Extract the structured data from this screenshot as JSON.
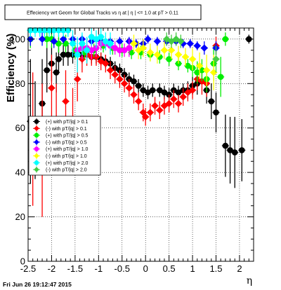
{
  "title": "Effeciency wrt Geom for Global Tracks vs  η at | η | <= 1.0 at pT > 0.11",
  "footer": "Fri Jun 26 19:12:47 2015",
  "chart_data": {
    "type": "scatter",
    "title": "Effeciency wrt Geom for Global Tracks vs  η at | η | <= 1.0 at pT > 0.11",
    "xlabel": "η",
    "ylabel": "Efficiency (%)",
    "xlim": [
      -2.5,
      2.3
    ],
    "ylim": [
      0,
      105
    ],
    "grid": true,
    "legend_position": "left",
    "x_ticks": [
      "-2.5",
      "-2",
      "-1.5",
      "-1",
      "-0.5",
      "0",
      "0.5",
      "1",
      "1.5",
      "2"
    ],
    "y_ticks": [
      "0",
      "20",
      "40",
      "60",
      "80",
      "100"
    ],
    "series": [
      {
        "name": "(+) with pT/|q| > 0.1",
        "color": "#000000",
        "marker": "circle",
        "points": [
          [
            -2.45,
            63
          ],
          [
            -2.35,
            59
          ],
          [
            -2.2,
            71
          ],
          [
            -2.1,
            86
          ],
          [
            -2.0,
            89
          ],
          [
            -1.9,
            85
          ],
          [
            -1.85,
            91
          ],
          [
            -1.75,
            93
          ],
          [
            -1.65,
            93
          ],
          [
            -1.55,
            93
          ],
          [
            -1.45,
            94
          ],
          [
            -1.35,
            93
          ],
          [
            -1.25,
            93
          ],
          [
            -1.15,
            92
          ],
          [
            -1.05,
            92
          ],
          [
            -0.95,
            91
          ],
          [
            -0.85,
            90
          ],
          [
            -0.75,
            89
          ],
          [
            -0.65,
            87
          ],
          [
            -0.55,
            86
          ],
          [
            -0.45,
            84
          ],
          [
            -0.35,
            82
          ],
          [
            -0.25,
            81
          ],
          [
            -0.15,
            79
          ],
          [
            -0.05,
            77
          ],
          [
            0.05,
            76
          ],
          [
            0.15,
            77
          ],
          [
            0.3,
            77
          ],
          [
            0.4,
            76
          ],
          [
            0.5,
            75
          ],
          [
            0.6,
            77
          ],
          [
            0.7,
            76
          ],
          [
            0.8,
            77
          ],
          [
            0.9,
            77
          ],
          [
            1.0,
            79
          ],
          [
            1.1,
            80
          ],
          [
            1.3,
            77
          ],
          [
            1.4,
            72
          ],
          [
            1.5,
            67
          ],
          [
            1.7,
            52
          ],
          [
            1.8,
            50
          ],
          [
            1.9,
            49
          ],
          [
            2.05,
            50
          ],
          [
            2.2,
            100
          ]
        ],
        "errors": [
          28,
          22,
          20,
          10,
          8,
          9,
          6,
          5,
          5,
          4,
          4,
          4,
          3,
          3,
          3,
          3,
          3,
          3,
          3,
          3,
          3,
          3,
          3,
          3,
          3,
          3,
          3,
          3,
          3,
          3,
          3,
          3,
          3,
          4,
          4,
          5,
          6,
          8,
          9,
          14,
          15,
          16,
          14,
          2
        ]
      },
      {
        "name": "(-) with pT/|q| > 0.1",
        "color": "#ff0000",
        "marker": "diamond",
        "points": [
          [
            -2.4,
            55
          ],
          [
            -2.2,
            50
          ],
          [
            -2.0,
            78
          ],
          [
            -1.9,
            62
          ],
          [
            -1.7,
            72
          ],
          [
            -1.55,
            62
          ],
          [
            -1.45,
            82
          ],
          [
            -1.35,
            91
          ],
          [
            -1.25,
            93
          ],
          [
            -1.15,
            92
          ],
          [
            -1.05,
            92
          ],
          [
            -0.95,
            90
          ],
          [
            -0.85,
            89
          ],
          [
            -0.75,
            86
          ],
          [
            -0.65,
            84
          ],
          [
            -0.55,
            82
          ],
          [
            -0.45,
            80
          ],
          [
            -0.35,
            78
          ],
          [
            -0.25,
            75
          ],
          [
            -0.15,
            72
          ],
          [
            -0.05,
            67
          ],
          [
            0.0,
            65
          ],
          [
            0.1,
            67
          ],
          [
            0.2,
            70
          ],
          [
            0.3,
            68
          ],
          [
            0.4,
            70
          ],
          [
            0.5,
            71
          ],
          [
            0.6,
            73
          ],
          [
            0.7,
            71
          ],
          [
            0.8,
            74
          ],
          [
            0.9,
            76
          ],
          [
            1.0,
            77
          ],
          [
            1.1,
            82
          ],
          [
            1.2,
            81
          ],
          [
            1.3,
            80
          ],
          [
            1.5,
            97
          ]
        ],
        "errors": [
          30,
          30,
          15,
          18,
          14,
          16,
          10,
          6,
          5,
          4,
          4,
          4,
          4,
          4,
          4,
          4,
          4,
          4,
          4,
          4,
          4,
          4,
          4,
          4,
          4,
          4,
          4,
          4,
          4,
          4,
          4,
          4,
          5,
          6,
          6,
          4
        ]
      },
      {
        "name": "(+) with pT/|q| > 0.5",
        "color": "#00ee00",
        "marker": "circle",
        "points": [
          [
            -2.45,
            100
          ],
          [
            -2.1,
            100
          ],
          [
            -2.0,
            100
          ],
          [
            -1.85,
            98
          ],
          [
            -1.7,
            98
          ],
          [
            -1.5,
            95
          ],
          [
            -1.3,
            94
          ],
          [
            -1.1,
            95
          ],
          [
            -0.9,
            97
          ],
          [
            -0.7,
            96
          ],
          [
            -0.5,
            95
          ],
          [
            -0.3,
            94
          ],
          [
            -0.1,
            94
          ],
          [
            0.1,
            93
          ],
          [
            0.3,
            92
          ],
          [
            0.5,
            91
          ],
          [
            0.7,
            89
          ],
          [
            0.9,
            88
          ],
          [
            1.0,
            87
          ],
          [
            1.1,
            85
          ],
          [
            1.2,
            86
          ],
          [
            1.3,
            82
          ],
          [
            1.45,
            89
          ],
          [
            1.6,
            83
          ],
          [
            1.7,
            100
          ]
        ],
        "errors": [
          4,
          4,
          4,
          4,
          4,
          4,
          3,
          3,
          3,
          3,
          3,
          3,
          3,
          3,
          3,
          3,
          3,
          3,
          4,
          5,
          5,
          6,
          8,
          9,
          3
        ]
      },
      {
        "name": "(-) with pT/|q| > 0.5",
        "color": "#0000ff",
        "marker": "diamond",
        "points": [
          [
            -2.45,
            100
          ],
          [
            -2.2,
            100
          ],
          [
            -1.95,
            99
          ],
          [
            -1.75,
            100
          ],
          [
            -1.55,
            100
          ],
          [
            -1.35,
            100
          ],
          [
            -1.15,
            99
          ],
          [
            -0.95,
            99
          ],
          [
            -0.75,
            99
          ],
          [
            -0.55,
            99
          ],
          [
            -0.35,
            99
          ],
          [
            -0.2,
            98
          ],
          [
            -0.05,
            98
          ],
          [
            0.05,
            100
          ],
          [
            0.25,
            99
          ],
          [
            0.45,
            99
          ],
          [
            0.65,
            99
          ],
          [
            0.8,
            98
          ],
          [
            0.95,
            98
          ],
          [
            1.1,
            97
          ],
          [
            1.25,
            96
          ],
          [
            1.5,
            96
          ]
        ],
        "errors": [
          3,
          3,
          3,
          2,
          2,
          2,
          2,
          2,
          2,
          2,
          2,
          2,
          2,
          2,
          2,
          2,
          2,
          2,
          2,
          2,
          3,
          3
        ]
      },
      {
        "name": "(+) with pT/|q| > 1.0",
        "color": "#ff00ff",
        "marker": "circle",
        "points": [
          [
            -1.45,
            95
          ],
          [
            -1.35,
            96
          ],
          [
            -1.25,
            96
          ],
          [
            -1.15,
            95
          ],
          [
            -1.05,
            96
          ],
          [
            -0.95,
            98
          ],
          [
            -0.85,
            98
          ],
          [
            -0.75,
            97
          ],
          [
            -0.65,
            96
          ],
          [
            -0.55,
            95
          ],
          [
            -0.45,
            95
          ],
          [
            -0.35,
            96
          ]
        ],
        "errors": [
          5,
          5,
          4,
          4,
          4,
          3,
          3,
          3,
          3,
          3,
          3,
          4
        ]
      },
      {
        "name": "(-) with pT/|q| > 1.0",
        "color": "#ffff00",
        "marker": "diamond",
        "points": [
          [
            -0.25,
            98
          ],
          [
            -0.15,
            95
          ],
          [
            -0.05,
            96
          ],
          [
            0.1,
            94
          ],
          [
            0.25,
            93
          ],
          [
            0.4,
            95
          ],
          [
            0.55,
            95
          ],
          [
            0.7,
            93
          ],
          [
            0.85,
            92
          ],
          [
            1.0,
            91
          ],
          [
            1.15,
            88
          ],
          [
            1.3,
            86
          ],
          [
            1.45,
            85
          ]
        ],
        "errors": [
          4,
          4,
          4,
          4,
          4,
          4,
          4,
          4,
          4,
          5,
          6,
          7,
          8
        ]
      },
      {
        "name": "(+) with pT/|q| > 2.0",
        "color": "#00ffff",
        "marker": "circle",
        "points": [
          [
            -2.45,
            104
          ],
          [
            -2.35,
            104
          ],
          [
            -2.25,
            104
          ],
          [
            -2.15,
            104
          ],
          [
            -2.05,
            104
          ],
          [
            -1.95,
            104
          ],
          [
            -1.85,
            104
          ],
          [
            -1.75,
            104
          ],
          [
            -1.65,
            104
          ],
          [
            -1.55,
            98
          ],
          [
            -1.45,
            93
          ],
          [
            -1.35,
            98
          ],
          [
            -1.25,
            95
          ],
          [
            -1.15,
            101
          ],
          [
            -1.05,
            100
          ],
          [
            -0.95,
            101
          ],
          [
            -0.85,
            99
          ],
          [
            -0.75,
            98
          ]
        ],
        "errors": [
          3,
          3,
          3,
          3,
          3,
          3,
          3,
          3,
          3,
          6,
          8,
          5,
          6,
          4,
          4,
          4,
          4,
          5
        ]
      },
      {
        "name": "(-) with pT/|q| > 2.0",
        "color": "#44cc44",
        "marker": "diamond",
        "points": [
          [
            0.45,
            100
          ],
          [
            0.55,
            99
          ],
          [
            0.65,
            100
          ],
          [
            0.75,
            99
          ],
          [
            1.5,
            91
          ]
        ],
        "errors": [
          3,
          3,
          3,
          3,
          6
        ]
      }
    ]
  }
}
